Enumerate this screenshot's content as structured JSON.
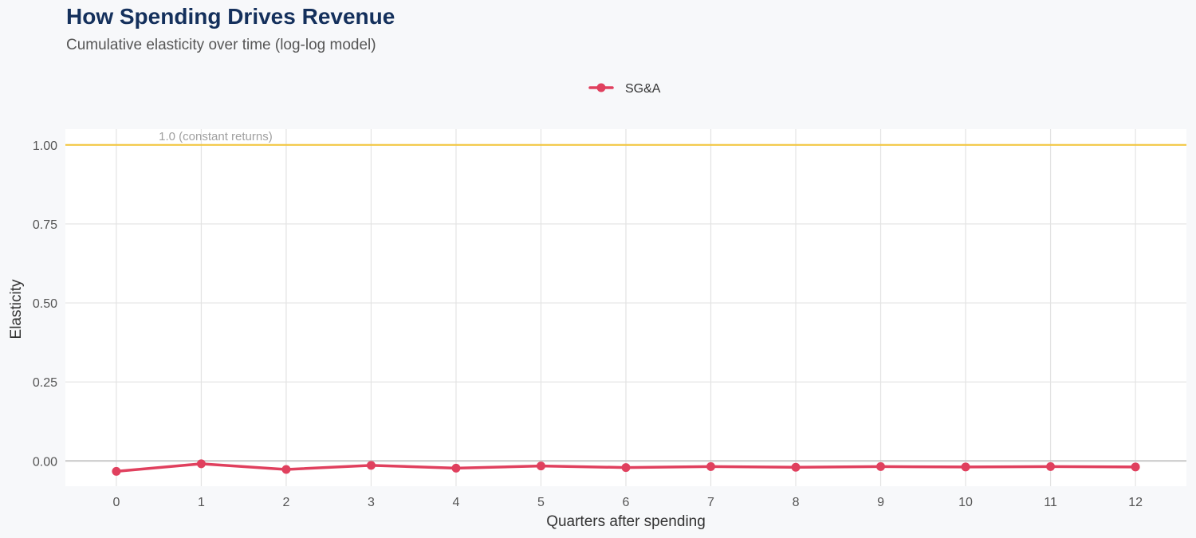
{
  "header": {
    "title": "How Spending Drives Revenue",
    "subtitle": "Cumulative elasticity over time (log-log model)"
  },
  "chart_data": {
    "type": "line",
    "title": "How Spending Drives Revenue",
    "subtitle": "Cumulative elasticity over time (log-log model)",
    "xlabel": "Quarters after spending",
    "ylabel": "Elasticity",
    "x": [
      0,
      1,
      2,
      3,
      4,
      5,
      6,
      7,
      8,
      9,
      10,
      11,
      12
    ],
    "series": [
      {
        "name": "SG&A",
        "color": "#e0405e",
        "values": [
          -0.033,
          -0.009,
          -0.027,
          -0.014,
          -0.023,
          -0.016,
          -0.021,
          -0.018,
          -0.02,
          -0.018,
          -0.019,
          -0.018,
          -0.019
        ]
      }
    ],
    "xlim": [
      -0.6,
      12.6
    ],
    "ylim": [
      -0.08,
      1.05
    ],
    "yticks": [
      0.0,
      0.25,
      0.5,
      0.75,
      1.0
    ],
    "ytick_labels": [
      "0.00",
      "0.25",
      "0.50",
      "0.75",
      "1.00"
    ],
    "xticks": [
      0,
      1,
      2,
      3,
      4,
      5,
      6,
      7,
      8,
      9,
      10,
      11,
      12
    ],
    "xtick_labels": [
      "0",
      "1",
      "2",
      "3",
      "4",
      "5",
      "6",
      "7",
      "8",
      "9",
      "10",
      "11",
      "12"
    ],
    "reference_line": {
      "y": 1.0,
      "label": "1.0 (constant returns)",
      "color": "#f2c744"
    },
    "zero_line": {
      "y": 0.0,
      "color": "#c8c8c8"
    },
    "grid": true,
    "legend_position": "top-center",
    "colors": {
      "panel_background": "#ffffff",
      "page_background": "#f7f8fa",
      "gridline": "#e3e3e3",
      "title": "#14305c"
    }
  }
}
